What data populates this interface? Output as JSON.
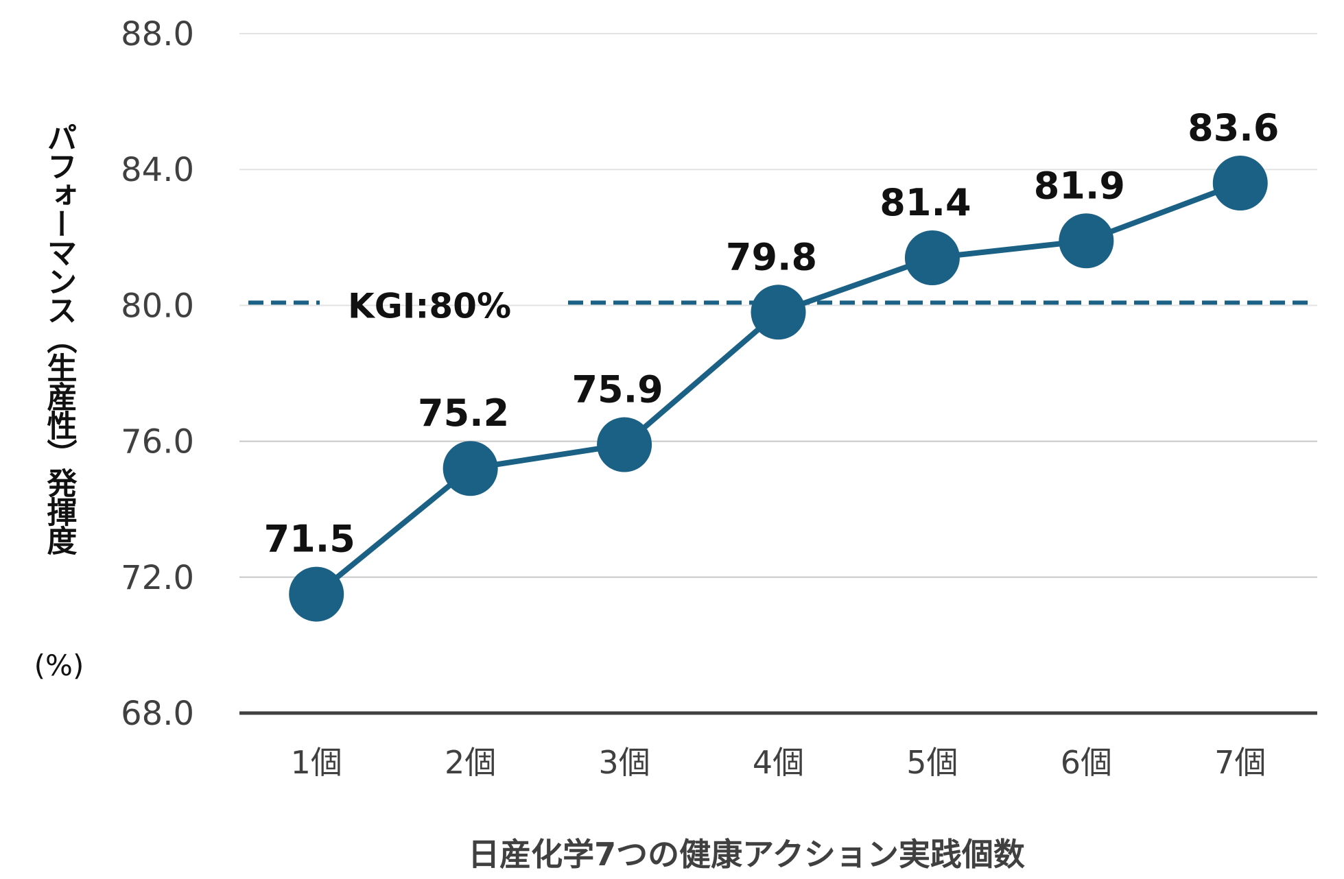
{
  "chart_data": {
    "type": "line",
    "title": "",
    "xlabel": "日産化学7つの健康アクション実践個数",
    "ylabel": "パフォーマンス（生産性）発揮度",
    "ylabel_unit": "(%)",
    "categories": [
      "1個",
      "2個",
      "3個",
      "4個",
      "5個",
      "6個",
      "7個"
    ],
    "series": [
      {
        "name": "パフォーマンス発揮度",
        "values": [
          71.5,
          75.2,
          75.9,
          79.8,
          81.4,
          81.9,
          83.6
        ],
        "color": "#1a6185"
      }
    ],
    "data_labels": [
      "71.5",
      "75.2",
      "75.9",
      "79.8",
      "81.4",
      "81.9",
      "83.6"
    ],
    "ylim": [
      68.0,
      88.0
    ],
    "yticks": [
      "68.0",
      "72.0",
      "76.0",
      "80.0",
      "84.0",
      "88.0"
    ],
    "grid": true,
    "reference_line": {
      "label": "KGI:80%",
      "value": 80.0,
      "style": "dashed",
      "color": "#1a6185"
    }
  }
}
